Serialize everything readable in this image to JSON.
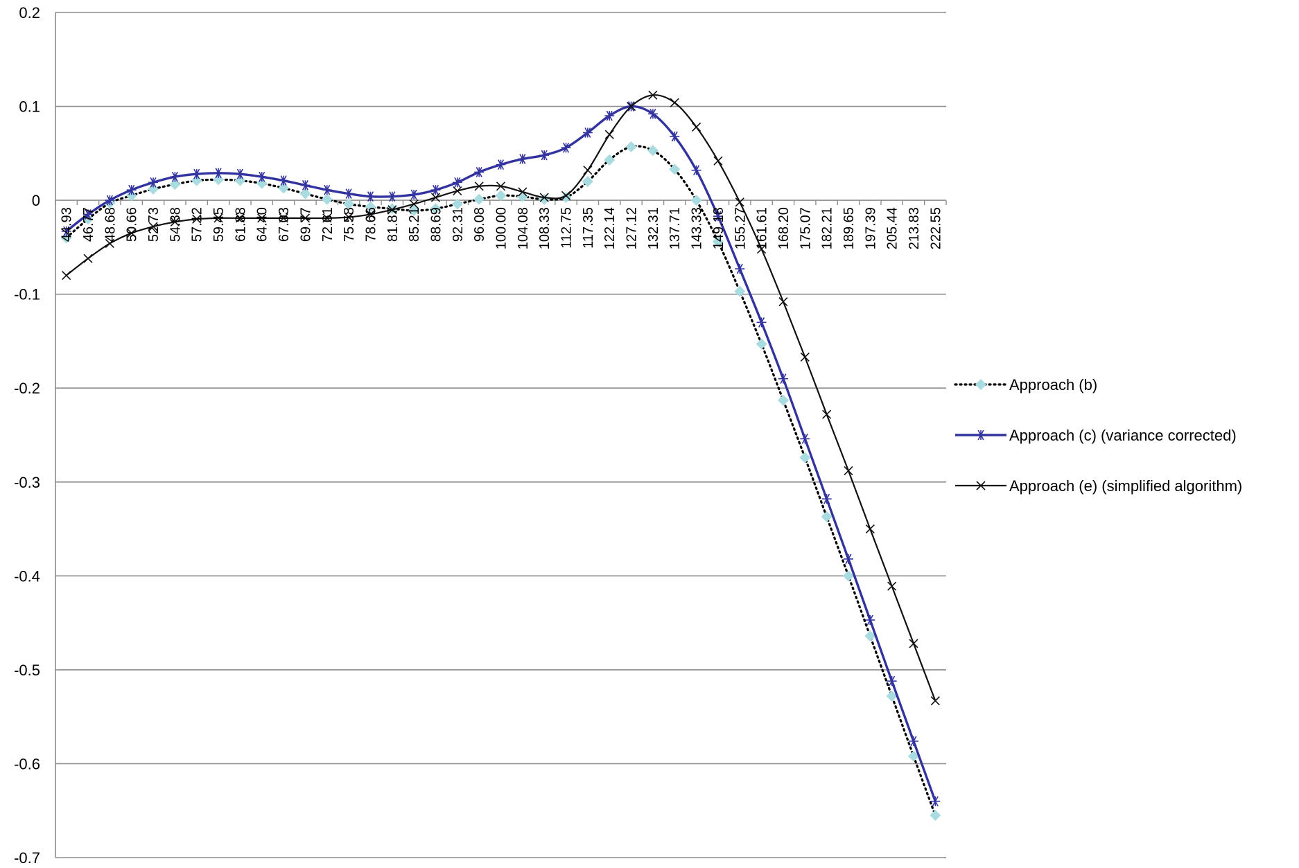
{
  "chart_data": {
    "type": "line",
    "title": "",
    "xlabel": "",
    "ylabel": "",
    "ylim": [
      -0.7,
      0.2
    ],
    "yticks": [
      0.2,
      0.1,
      0,
      -0.1,
      -0.2,
      -0.3,
      -0.4,
      -0.5,
      -0.6,
      -0.7
    ],
    "ytick_labels": [
      "0.2",
      "0.1",
      "0",
      "-0.1",
      "-0.2",
      "-0.3",
      "-0.4",
      "-0.5",
      "-0.6",
      "-0.7"
    ],
    "grid": "horizontal",
    "legend_position": "right",
    "categories": [
      "44.93",
      "46.77",
      "48.68",
      "50.66",
      "52.73",
      "54.88",
      "57.12",
      "59.45",
      "61.88",
      "64.40",
      "67.03",
      "69.77",
      "72.61",
      "75.58",
      "78.66",
      "81.87",
      "85.21",
      "88.69",
      "92.31",
      "96.08",
      "100.00",
      "104.08",
      "108.33",
      "112.75",
      "117.35",
      "122.14",
      "127.12",
      "132.31",
      "137.71",
      "143.33",
      "149.18",
      "155.27",
      "161.61",
      "168.20",
      "175.07",
      "182.21",
      "189.65",
      "197.39",
      "205.44",
      "213.83",
      "222.55"
    ],
    "series": [
      {
        "name": "Approach (b)",
        "color": "#a8dce0",
        "line_color": "#000000",
        "line_style": "dotted",
        "marker": "diamond",
        "values": [
          -0.04,
          -0.02,
          -0.003,
          0.005,
          0.012,
          0.017,
          0.021,
          0.022,
          0.021,
          0.018,
          0.013,
          0.007,
          0.001,
          -0.004,
          -0.007,
          -0.009,
          -0.011,
          -0.009,
          -0.004,
          0.001,
          0.005,
          0.004,
          0.001,
          0.003,
          0.02,
          0.043,
          0.057,
          0.053,
          0.033,
          0,
          -0.044,
          -0.097,
          -0.153,
          -0.213,
          -0.274,
          -0.337,
          -0.4,
          -0.464,
          -0.528,
          -0.592,
          -0.655
        ]
      },
      {
        "name": "Approach (c) (variance corrected)",
        "color": "#3333a0",
        "line_style": "solid",
        "marker": "asterisk",
        "values": [
          -0.033,
          -0.015,
          0,
          0.011,
          0.019,
          0.025,
          0.028,
          0.029,
          0.028,
          0.025,
          0.021,
          0.016,
          0.011,
          0.007,
          0.004,
          0.004,
          0.006,
          0.011,
          0.019,
          0.03,
          0.038,
          0.044,
          0.048,
          0.056,
          0.072,
          0.09,
          0.1,
          0.092,
          0.068,
          0.032,
          -0.017,
          -0.073,
          -0.13,
          -0.19,
          -0.254,
          -0.318,
          -0.382,
          -0.447,
          -0.512,
          -0.576,
          -0.64
        ]
      },
      {
        "name": "Approach (e) (simplified algorithm)",
        "color": "#111111",
        "line_style": "solid",
        "marker": "x",
        "values": [
          -0.08,
          -0.062,
          -0.046,
          -0.035,
          -0.028,
          -0.023,
          -0.02,
          -0.019,
          -0.019,
          -0.019,
          -0.019,
          -0.019,
          -0.019,
          -0.018,
          -0.015,
          -0.01,
          -0.004,
          0.003,
          0.01,
          0.015,
          0.015,
          0.009,
          0.003,
          0.005,
          0.032,
          0.07,
          0.1,
          0.112,
          0.104,
          0.078,
          0.042,
          -0.002,
          -0.052,
          -0.108,
          -0.167,
          -0.228,
          -0.288,
          -0.35,
          -0.411,
          -0.472,
          -0.533
        ]
      }
    ]
  }
}
